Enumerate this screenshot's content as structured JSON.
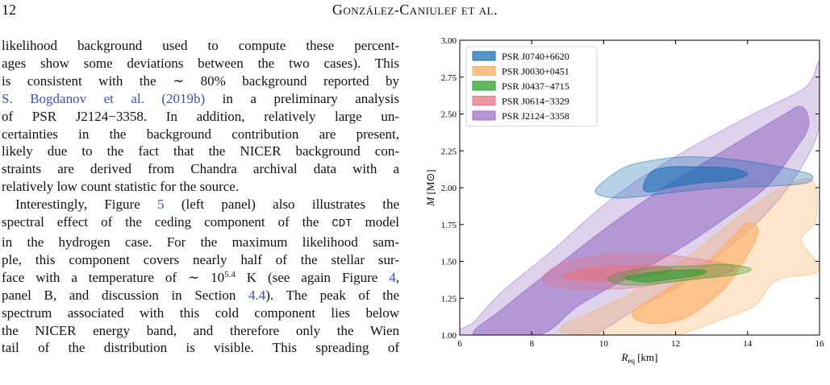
{
  "header": {
    "page_number": "12",
    "running_title": "González-Caniulef et al."
  },
  "body": {
    "para1": {
      "l1": "likelihood background used to compute these percent-",
      "l2": "ages show some deviations between the two cases). This",
      "l3_a": "is consistent with the ",
      "l3_b": "∼ 80%",
      "l3_c": " background reported by",
      "l4_cite": "S. Bogdanov et al. (2019b)",
      "l4_b": " in a preliminary analysis",
      "l5": "of PSR J2124−3358. In addition, relatively large un-",
      "l6": "certainties in the background contribution are present,",
      "l7": "likely due to the fact that the NICER background con-",
      "l8": "straints are derived from Chandra archival data with a",
      "l9": "relatively low count statistic for the source."
    },
    "para2": {
      "l1_a": "Interestingly, Figure ",
      "l1_ref": "5",
      "l1_b": " (left panel) also illustrates the",
      "l2_a": "spectral effect of the ceding component of the ",
      "l2_code": "CDT",
      "l2_b": " model",
      "l3": "in the hydrogen case. For the maximum likelihood sam-",
      "l4": "ple, this component covers nearly half of the stellar sur-",
      "l5_a": "face with a temperature of ∼ 10",
      "l5_sup": "5.4",
      "l5_b": " K (see again Figure ",
      "l5_ref": "4",
      "l5_c": ",",
      "l6_a": "panel B, and discussion in Section ",
      "l6_ref": "4.4",
      "l6_b": "). The peak of the",
      "l7": "spectrum associated with this cold component lies below",
      "l8": "the NICER energy band, and therefore only the Wien",
      "l9": "tail of the distribution is visible. This spreading of"
    }
  },
  "chart_data": {
    "type": "contour",
    "xlabel": "R_eq [km]",
    "ylabel": "M [M⊙]",
    "xlim": [
      6,
      16
    ],
    "ylim": [
      1.0,
      3.0
    ],
    "x_ticks": [
      6,
      8,
      10,
      12,
      14,
      16
    ],
    "y_ticks": [
      1.0,
      1.25,
      1.5,
      1.75,
      2.0,
      2.25,
      2.5,
      2.75,
      3.0
    ],
    "x_tick_labels": [
      "6",
      "8",
      "10",
      "12",
      "14",
      "16"
    ],
    "y_tick_labels": [
      "1.00",
      "1.25",
      "1.50",
      "1.75",
      "2.00",
      "2.25",
      "2.50",
      "2.75",
      "3.00"
    ],
    "legend_position": "top-left",
    "series": [
      {
        "name": "PSR J0740+6620",
        "color": "#1f6fb4",
        "outer": [
          [
            9.9,
            2.02
          ],
          [
            10.6,
            2.14
          ],
          [
            11.5,
            2.19
          ],
          [
            12.5,
            2.21
          ],
          [
            14.0,
            2.18
          ],
          [
            15.3,
            2.12
          ],
          [
            15.8,
            2.08
          ],
          [
            15.6,
            2.03
          ],
          [
            14.6,
            2.01
          ],
          [
            13.3,
            2.0
          ],
          [
            12.0,
            1.97
          ],
          [
            11.0,
            1.94
          ],
          [
            10.3,
            1.93
          ],
          [
            9.8,
            1.96
          ]
        ],
        "inner": [
          [
            11.1,
            2.0
          ],
          [
            11.3,
            2.1
          ],
          [
            11.8,
            2.14
          ],
          [
            12.8,
            2.14
          ],
          [
            13.6,
            2.13
          ],
          [
            14.0,
            2.09
          ],
          [
            13.5,
            2.05
          ],
          [
            12.6,
            2.03
          ],
          [
            11.8,
            2.0
          ],
          [
            11.3,
            1.97
          ]
        ]
      },
      {
        "name": "PSR J0030+0451",
        "color": "#fdae61",
        "outer": [
          [
            8.8,
            1.05
          ],
          [
            10.5,
            1.25
          ],
          [
            12.0,
            1.47
          ],
          [
            13.3,
            1.72
          ],
          [
            14.8,
            1.98
          ],
          [
            15.8,
            2.05
          ],
          [
            15.9,
            1.78
          ],
          [
            15.5,
            1.64
          ],
          [
            16.0,
            1.44
          ],
          [
            14.8,
            1.37
          ],
          [
            14.2,
            1.2
          ],
          [
            13.2,
            1.1
          ],
          [
            12.0,
            1.0
          ],
          [
            10.6,
            0.99
          ],
          [
            9.5,
            1.0
          ]
        ],
        "inner": [
          [
            10.8,
            1.15
          ],
          [
            11.8,
            1.32
          ],
          [
            12.9,
            1.5
          ],
          [
            13.6,
            1.67
          ],
          [
            14.0,
            1.76
          ],
          [
            14.3,
            1.7
          ],
          [
            13.9,
            1.5
          ],
          [
            13.3,
            1.3
          ],
          [
            12.3,
            1.12
          ],
          [
            11.3,
            1.08
          ]
        ]
      },
      {
        "name": "PSR J0437−4715",
        "color": "#2ca02c",
        "outer": [
          [
            10.1,
            1.38
          ],
          [
            10.6,
            1.43
          ],
          [
            11.5,
            1.46
          ],
          [
            12.6,
            1.47
          ],
          [
            13.4,
            1.48
          ],
          [
            14.1,
            1.45
          ],
          [
            13.7,
            1.41
          ],
          [
            12.6,
            1.38
          ],
          [
            11.5,
            1.35
          ],
          [
            10.6,
            1.34
          ]
        ],
        "inner": [
          [
            10.6,
            1.39
          ],
          [
            11.2,
            1.42
          ],
          [
            12.0,
            1.44
          ],
          [
            12.8,
            1.44
          ],
          [
            12.7,
            1.41
          ],
          [
            11.9,
            1.38
          ],
          [
            11.1,
            1.36
          ]
        ]
      },
      {
        "name": "PSR J0614−3329",
        "color": "#e7737f",
        "outer": [
          [
            8.3,
            1.39
          ],
          [
            8.9,
            1.49
          ],
          [
            10.2,
            1.55
          ],
          [
            11.5,
            1.55
          ],
          [
            12.5,
            1.52
          ],
          [
            13.6,
            1.47
          ],
          [
            13.3,
            1.41
          ],
          [
            12.1,
            1.37
          ],
          [
            10.8,
            1.32
          ],
          [
            9.6,
            1.31
          ],
          [
            8.7,
            1.33
          ]
        ],
        "inner": [
          [
            8.9,
            1.4
          ],
          [
            9.7,
            1.46
          ],
          [
            10.7,
            1.47
          ],
          [
            11.5,
            1.47
          ],
          [
            11.9,
            1.45
          ],
          [
            11.5,
            1.41
          ],
          [
            10.4,
            1.37
          ],
          [
            9.4,
            1.37
          ]
        ]
      },
      {
        "name": "PSR J2124−3358",
        "color": "#9b72c8",
        "outer": [
          [
            6.0,
            1.0
          ],
          [
            6.4,
            1.09
          ],
          [
            7.2,
            1.3
          ],
          [
            8.6,
            1.58
          ],
          [
            10.3,
            1.94
          ],
          [
            12.2,
            2.24
          ],
          [
            14.0,
            2.48
          ],
          [
            15.6,
            2.68
          ],
          [
            16.0,
            2.85
          ],
          [
            16.0,
            2.42
          ],
          [
            15.4,
            2.1
          ],
          [
            14.5,
            1.82
          ],
          [
            13.3,
            1.56
          ],
          [
            12.2,
            1.35
          ],
          [
            11.0,
            1.19
          ],
          [
            9.9,
            1.02
          ],
          [
            9.6,
            1.0
          ]
        ],
        "inner": [
          [
            6.4,
            1.0
          ],
          [
            7.2,
            1.18
          ],
          [
            8.6,
            1.45
          ],
          [
            10.2,
            1.75
          ],
          [
            11.8,
            2.02
          ],
          [
            13.4,
            2.26
          ],
          [
            14.9,
            2.48
          ],
          [
            15.5,
            2.55
          ],
          [
            15.7,
            2.42
          ],
          [
            15.3,
            2.25
          ],
          [
            14.5,
            2.0
          ],
          [
            13.3,
            1.78
          ],
          [
            12.0,
            1.57
          ],
          [
            10.6,
            1.38
          ],
          [
            9.3,
            1.2
          ],
          [
            8.2,
            1.0
          ]
        ]
      }
    ]
  }
}
